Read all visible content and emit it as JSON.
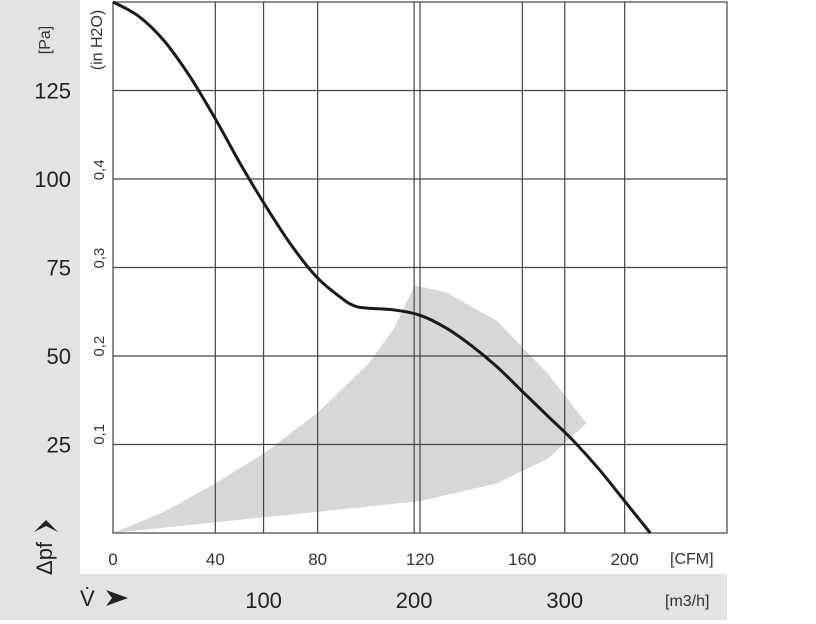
{
  "chart_data": {
    "type": "line",
    "title": "",
    "pressure_axis_pa": {
      "unit": "[Pa]",
      "ticks": [
        "25",
        "50",
        "75",
        "100",
        "125"
      ],
      "tick_values": [
        25,
        50,
        75,
        100,
        125
      ],
      "range": [
        0,
        150
      ]
    },
    "pressure_axis_inh2o": {
      "unit": "(in H2O)",
      "ticks": [
        "0,1",
        "0,2",
        "0,3",
        "0,4"
      ],
      "tick_values": [
        0.1,
        0.2,
        0.3,
        0.4
      ]
    },
    "flow_axis_cfm": {
      "unit": "[CFM]",
      "ticks": [
        "0",
        "40",
        "80",
        "120",
        "160",
        "200"
      ],
      "tick_values": [
        0,
        40,
        80,
        120,
        160,
        200
      ],
      "range": [
        0,
        240
      ]
    },
    "flow_axis_m3h": {
      "unit": "[m3/h]",
      "ticks": [
        "100",
        "200",
        "300"
      ],
      "tick_values": [
        100,
        200,
        300
      ]
    },
    "pressure_symbol": "Δpf",
    "flow_symbol": "V̇",
    "grid": true,
    "series": [
      {
        "x": [
          0,
          10,
          20,
          30,
          40,
          50,
          60,
          70,
          80,
          90,
          95,
          100,
          110,
          120,
          130,
          140,
          150,
          160,
          170,
          180,
          190,
          200,
          210
        ],
        "y": [
          150,
          146,
          139,
          129,
          117,
          104,
          92,
          81,
          72,
          66,
          64,
          63.5,
          63,
          61.5,
          58,
          53,
          47,
          40,
          33,
          26,
          18,
          9,
          0
        ]
      }
    ],
    "operating_region": {
      "upper": {
        "x": [
          0,
          20,
          40,
          60,
          80,
          100,
          110,
          118,
          130,
          150,
          170,
          185
        ],
        "y": [
          0,
          6,
          14,
          23,
          34,
          48,
          58,
          70,
          68,
          60,
          45,
          31
        ]
      },
      "lower": {
        "x": [
          0,
          40,
          80,
          120,
          150,
          170,
          185
        ],
        "y": [
          0,
          3,
          6,
          9,
          14,
          21,
          31
        ]
      }
    }
  }
}
